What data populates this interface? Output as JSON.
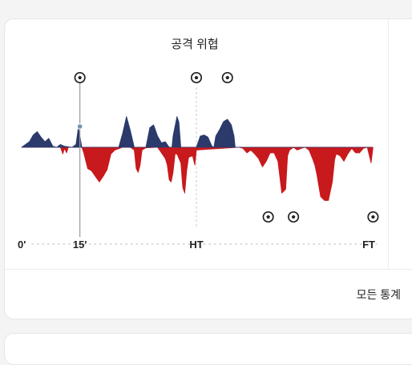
{
  "widget": {
    "title": "공격 위협",
    "more_stats_label": "모든 통계"
  },
  "colors": {
    "home": "#2b3a6b",
    "away": "#c8191c",
    "accent_line": "#9a9a9a"
  },
  "chart_data": {
    "type": "area",
    "x_ticks": [
      "0'",
      "15'",
      "HT",
      "FT"
    ],
    "x_range": [
      0,
      90
    ],
    "y_range": [
      -1,
      1
    ],
    "home_values": [
      [
        0,
        0
      ],
      [
        2,
        0.1
      ],
      [
        3,
        0.22
      ],
      [
        4,
        0.28
      ],
      [
        5,
        0.18
      ],
      [
        6,
        0.1
      ],
      [
        7,
        0.16
      ],
      [
        8,
        0.02
      ],
      [
        9,
        0
      ],
      [
        10,
        0.05
      ],
      [
        11,
        0.02
      ],
      [
        13,
        0
      ],
      [
        14,
        0.05
      ],
      [
        14.6,
        0.35
      ],
      [
        15,
        0.2
      ],
      [
        15.5,
        0
      ],
      [
        25,
        0
      ],
      [
        26,
        0.25
      ],
      [
        27,
        0.55
      ],
      [
        28,
        0.3
      ],
      [
        29,
        0
      ],
      [
        32,
        0
      ],
      [
        33,
        0.35
      ],
      [
        34,
        0.4
      ],
      [
        35,
        0.2
      ],
      [
        36,
        0.08
      ],
      [
        37,
        0.1
      ],
      [
        38,
        0
      ],
      [
        38.7,
        0
      ],
      [
        39,
        0.2
      ],
      [
        40,
        0.55
      ],
      [
        40.5,
        0.45
      ],
      [
        41,
        0
      ],
      [
        45,
        0
      ],
      [
        46,
        0.2
      ],
      [
        47,
        0.22
      ],
      [
        48,
        0.18
      ],
      [
        49,
        0.02
      ],
      [
        49.5,
        0
      ],
      [
        50,
        0.2
      ],
      [
        51,
        0.32
      ],
      [
        52,
        0.46
      ],
      [
        53,
        0.5
      ],
      [
        54,
        0.4
      ],
      [
        54.7,
        0.2
      ],
      [
        55,
        0
      ],
      [
        90,
        0
      ]
    ],
    "away_values": [
      [
        0,
        0
      ],
      [
        10,
        0
      ],
      [
        10.6,
        -0.12
      ],
      [
        11,
        -0.02
      ],
      [
        11.6,
        -0.1
      ],
      [
        12,
        0
      ],
      [
        15.5,
        0
      ],
      [
        16,
        -0.1
      ],
      [
        17,
        -0.38
      ],
      [
        18,
        -0.42
      ],
      [
        19,
        -0.52
      ],
      [
        20,
        -0.62
      ],
      [
        21,
        -0.52
      ],
      [
        22,
        -0.4
      ],
      [
        23,
        -0.12
      ],
      [
        24,
        -0.05
      ],
      [
        26,
        0
      ],
      [
        28,
        0
      ],
      [
        29,
        -0.05
      ],
      [
        29.5,
        -0.38
      ],
      [
        30,
        -0.45
      ],
      [
        30.5,
        -0.32
      ],
      [
        31,
        -0.05
      ],
      [
        32,
        -0.01
      ],
      [
        35,
        0
      ],
      [
        36,
        -0.1
      ],
      [
        37,
        -0.2
      ],
      [
        37.5,
        -0.32
      ],
      [
        38,
        -0.58
      ],
      [
        38.5,
        -0.62
      ],
      [
        39,
        -0.45
      ],
      [
        39.5,
        -0.12
      ],
      [
        40,
        -0.12
      ],
      [
        41,
        -0.28
      ],
      [
        41.5,
        -0.72
      ],
      [
        42,
        -0.82
      ],
      [
        42.5,
        -0.42
      ],
      [
        43,
        -0.18
      ],
      [
        44,
        -0.15
      ],
      [
        44.6,
        -0.32
      ],
      [
        45,
        -0.05
      ],
      [
        56,
        0
      ],
      [
        57,
        -0.02
      ],
      [
        58,
        -0.1
      ],
      [
        59,
        -0.05
      ],
      [
        60,
        -0.12
      ],
      [
        61,
        -0.2
      ],
      [
        62,
        -0.35
      ],
      [
        63,
        -0.25
      ],
      [
        64,
        -0.1
      ],
      [
        65,
        -0.1
      ],
      [
        66,
        -0.25
      ],
      [
        67,
        -0.82
      ],
      [
        68,
        -0.75
      ],
      [
        68.5,
        -0.15
      ],
      [
        69,
        -0.05
      ],
      [
        70,
        0
      ],
      [
        71,
        -0.05
      ],
      [
        72,
        -0.02
      ],
      [
        73,
        0
      ],
      [
        74,
        -0.05
      ],
      [
        75,
        -0.22
      ],
      [
        75.5,
        -0.32
      ],
      [
        76,
        -0.48
      ],
      [
        77,
        -0.88
      ],
      [
        78,
        -0.95
      ],
      [
        79,
        -0.95
      ],
      [
        80,
        -0.62
      ],
      [
        80.6,
        -0.22
      ],
      [
        81,
        -0.12
      ],
      [
        82,
        -0.15
      ],
      [
        83,
        -0.25
      ],
      [
        84,
        -0.12
      ],
      [
        85,
        -0.02
      ],
      [
        86,
        -0.1
      ],
      [
        87,
        -0.1
      ],
      [
        88,
        -0.02
      ],
      [
        89,
        0
      ],
      [
        90,
        -0.28
      ],
      [
        90.5,
        0
      ]
    ],
    "home_goals": [
      15,
      45,
      53
    ],
    "away_goals": [
      63.5,
      70,
      90.5
    ],
    "marker_minute": 15,
    "halftime_minute": 45,
    "icons": [
      "soccer-ball-icon"
    ]
  }
}
